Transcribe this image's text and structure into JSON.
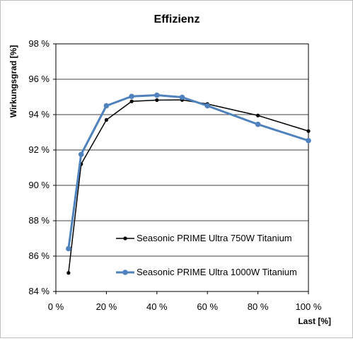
{
  "chart_data": {
    "type": "line",
    "title": "Effizienz",
    "xlabel": "Last [%]",
    "ylabel": "Wirkungsgrad [%]",
    "xlim": [
      0,
      100
    ],
    "ylim": [
      84,
      98
    ],
    "x_ticks": [
      0,
      20,
      40,
      60,
      80,
      100
    ],
    "x_tick_labels": [
      "0 %",
      "20 %",
      "40 %",
      "60 %",
      "80 %",
      "100 %"
    ],
    "y_ticks": [
      84,
      86,
      88,
      90,
      92,
      94,
      96,
      98
    ],
    "y_tick_labels": [
      "84 %",
      "86 %",
      "88 %",
      "90 %",
      "92 %",
      "94 %",
      "96 %",
      "98 %"
    ],
    "grid": "horizontal",
    "legend_position": "bottom-right",
    "series": [
      {
        "name": "Seasonic PRIME Ultra 750W Titanium",
        "color": "#000000",
        "x": [
          5,
          10,
          20,
          30,
          40,
          50,
          60,
          80,
          100
        ],
        "y": [
          85.05,
          91.2,
          93.7,
          94.75,
          94.82,
          94.83,
          94.6,
          93.95,
          93.07
        ]
      },
      {
        "name": "Seasonic PRIME Ultra 1000W Titanium",
        "color": "#4f81bd",
        "x": [
          5,
          10,
          20,
          30,
          40,
          50,
          60,
          80,
          100
        ],
        "y": [
          86.42,
          91.75,
          94.5,
          95.03,
          95.1,
          94.98,
          94.5,
          93.45,
          92.53
        ]
      }
    ]
  }
}
